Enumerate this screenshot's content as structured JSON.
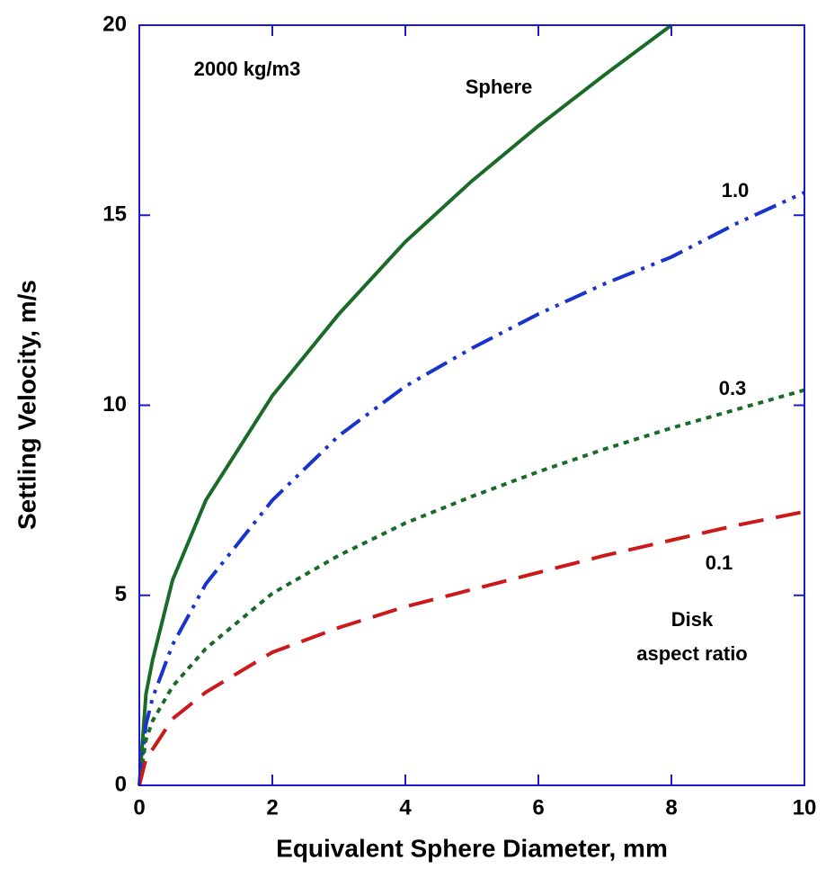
{
  "chart_data": {
    "type": "line",
    "xlabel": "Equivalent Sphere Diameter, mm",
    "ylabel": "Settling Velocity, m/s",
    "annotations": [
      "2000 kg/m3",
      "Disk",
      "aspect ratio"
    ],
    "x": [
      0,
      0.1,
      0.2,
      0.5,
      1,
      2,
      3,
      4,
      5,
      6,
      7,
      8,
      9,
      10
    ],
    "series": [
      {
        "name": "Sphere",
        "color": "#1a6b2a",
        "dash": "solid",
        "values": [
          0,
          2.4,
          3.3,
          5.4,
          7.5,
          10.25,
          12.4,
          14.3,
          15.9,
          17.35,
          18.7,
          20,
          null,
          null
        ]
      },
      {
        "name": "1.0",
        "color": "#1a33cc",
        "dash": "dashdotdot",
        "values": [
          0,
          1.6,
          2.3,
          3.7,
          5.3,
          7.5,
          9.2,
          10.5,
          11.5,
          12.4,
          13.2,
          13.9,
          14.8,
          15.6
        ]
      },
      {
        "name": "0.3",
        "color": "#1a6b2a",
        "dash": "dotted",
        "values": [
          0,
          1.2,
          1.7,
          2.6,
          3.6,
          5.05,
          6.05,
          6.9,
          7.6,
          8.25,
          8.85,
          9.4,
          9.9,
          10.4
        ]
      },
      {
        "name": "0.1",
        "color": "#cc1a1a",
        "dash": "dashed",
        "values": [
          0,
          0.7,
          0.95,
          1.75,
          2.45,
          3.5,
          4.15,
          4.7,
          5.15,
          5.6,
          6.05,
          6.45,
          6.85,
          7.2
        ]
      }
    ],
    "xlim": [
      0,
      10
    ],
    "xticks": [
      0,
      2,
      4,
      6,
      8,
      10
    ],
    "ylim": [
      0,
      20
    ],
    "yticks": [
      0,
      5,
      10,
      15,
      20
    ],
    "frame_color": "#1a1acc"
  }
}
